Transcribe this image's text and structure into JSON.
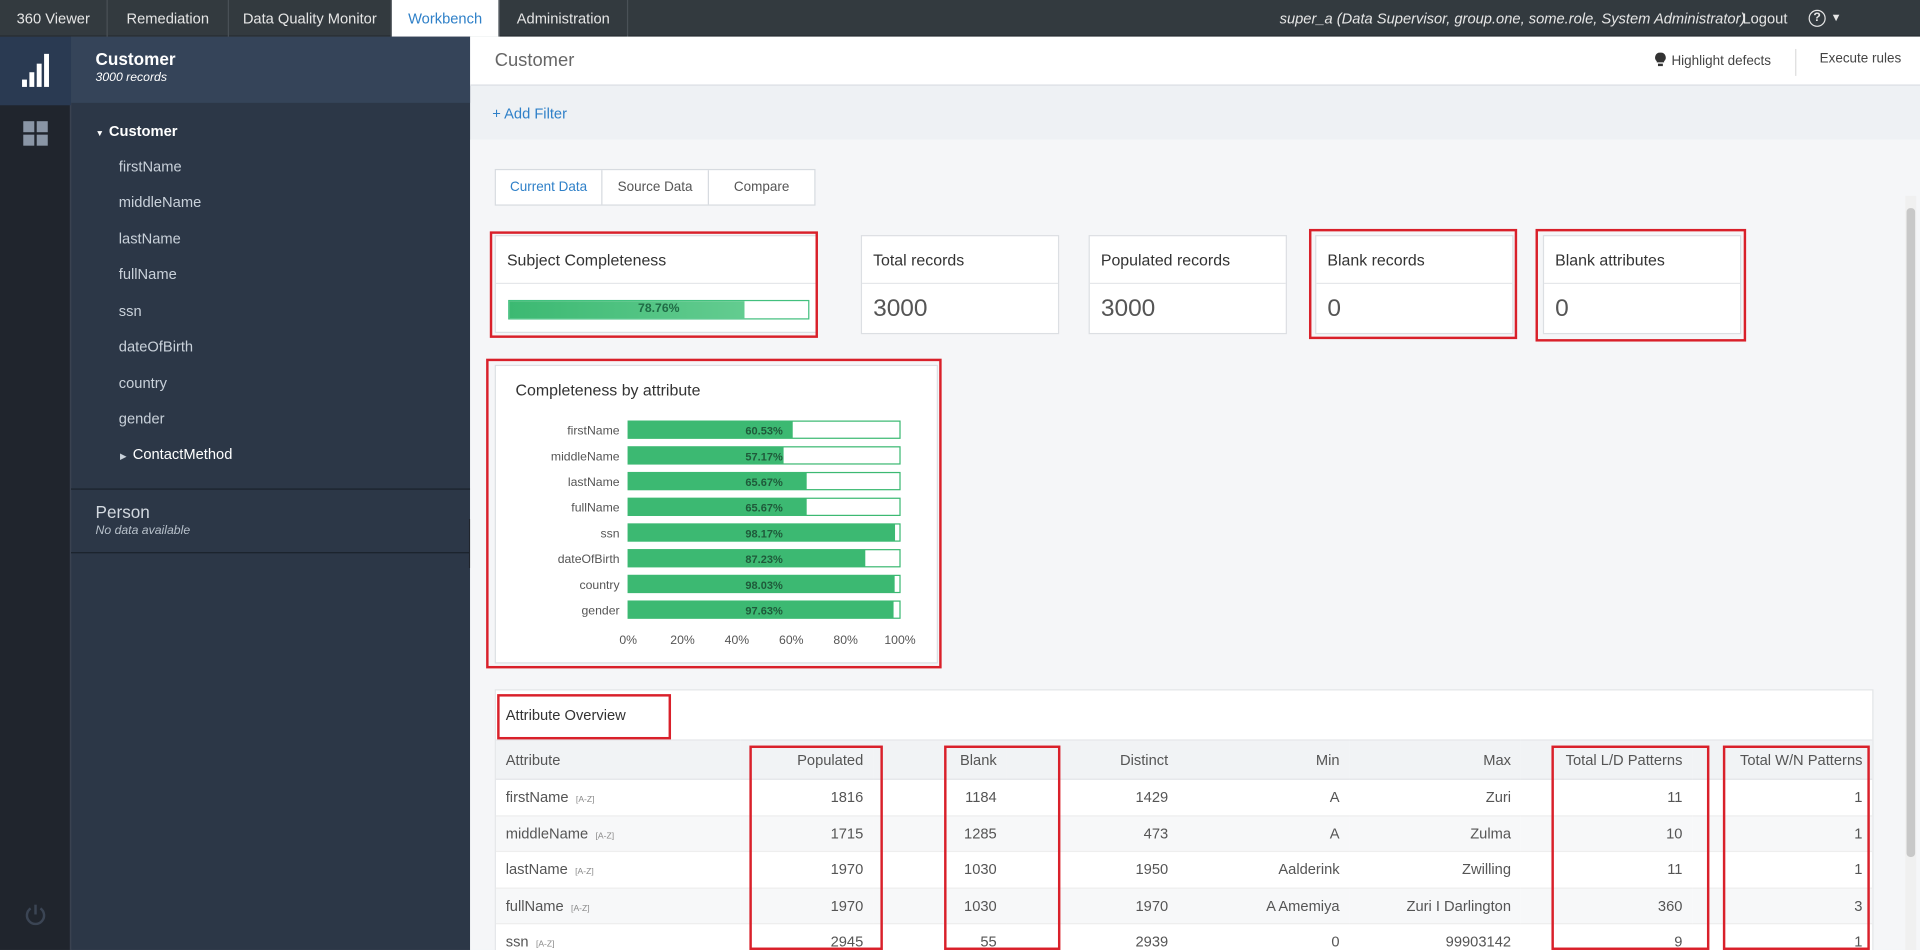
{
  "nav": {
    "tabs": [
      "360 Viewer",
      "Remediation",
      "Data Quality Monitor",
      "Workbench",
      "Administration"
    ],
    "active": "Workbench",
    "user": "super_a (Data Supervisor, group.one, some.role, System Administrator)",
    "logout": "Logout",
    "help_icon": "?"
  },
  "sidebar": {
    "title": "Customer",
    "subtitle": "3000 records",
    "root": "Customer",
    "items": [
      "firstName",
      "middleName",
      "lastName",
      "fullName",
      "ssn",
      "dateOfBirth",
      "country",
      "gender"
    ],
    "sub_item": "ContactMethod",
    "person": "Person",
    "person_sub": "No data available"
  },
  "header": {
    "title": "Customer",
    "highlight": "Highlight defects",
    "execute": "Execute rules"
  },
  "filter": {
    "add": "+ Add Filter"
  },
  "tabs": {
    "current": "Current Data",
    "source": "Source Data",
    "compare": "Compare"
  },
  "cards": {
    "completeness": {
      "title": "Subject Completeness",
      "value": 78.76,
      "label": "78.76%"
    },
    "total": {
      "title": "Total records",
      "value": "3000"
    },
    "populated": {
      "title": "Populated records",
      "value": "3000"
    },
    "blank": {
      "title": "Blank records",
      "value": "0"
    },
    "blank_attr": {
      "title": "Blank attributes",
      "value": "0"
    }
  },
  "chart_data": {
    "type": "bar",
    "orientation": "horizontal",
    "title": "Completeness by attribute",
    "categories": [
      "firstName",
      "middleName",
      "lastName",
      "fullName",
      "ssn",
      "dateOfBirth",
      "country",
      "gender"
    ],
    "values": [
      60.53,
      57.17,
      65.67,
      65.67,
      98.17,
      87.23,
      98.03,
      97.63
    ],
    "labels": [
      "60.53%",
      "57.17%",
      "65.67%",
      "65.67%",
      "98.17%",
      "87.23%",
      "98.03%",
      "97.63%"
    ],
    "xticks": [
      "0%",
      "20%",
      "40%",
      "60%",
      "80%",
      "100%"
    ],
    "xlim": [
      0,
      100
    ],
    "color": "#3cb972"
  },
  "table": {
    "title": "Attribute Overview",
    "columns": [
      "Attribute",
      "Populated",
      "Blank",
      "Distinct",
      "Min",
      "Max",
      "Total L/D Patterns",
      "Total W/N Patterns"
    ],
    "az": "[A-Z]",
    "rows": [
      [
        "firstName",
        "1816",
        "1184",
        "1429",
        "A",
        "Zuri",
        "11",
        "1"
      ],
      [
        "middleName",
        "1715",
        "1285",
        "473",
        "A",
        "Zulma",
        "10",
        "1"
      ],
      [
        "lastName",
        "1970",
        "1030",
        "1950",
        "Aalderink",
        "Zwilling",
        "11",
        "1"
      ],
      [
        "fullName",
        "1970",
        "1030",
        "1970",
        "A Amemiya",
        "Zuri I Darlington",
        "360",
        "3"
      ],
      [
        "ssn",
        "2945",
        "55",
        "2939",
        "0",
        "99903142",
        "9",
        "1"
      ]
    ]
  },
  "colors": {
    "accent": "#2f80c8",
    "highlight_box": "#d9202a",
    "bar": "#3cb972"
  }
}
